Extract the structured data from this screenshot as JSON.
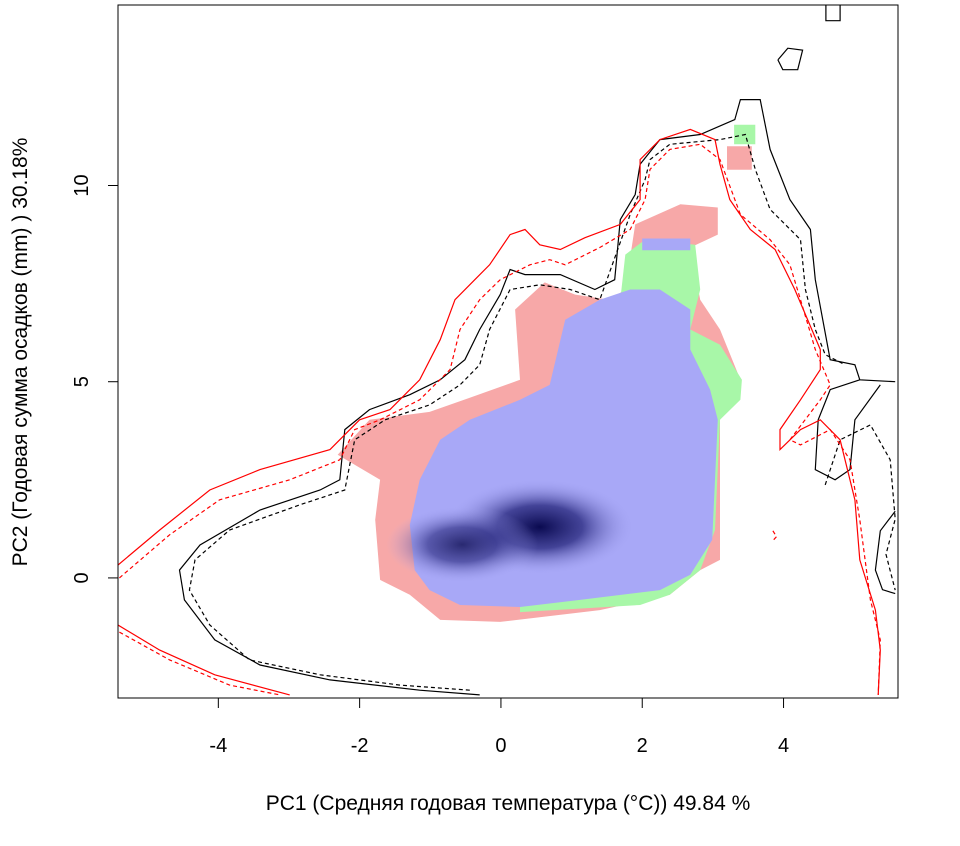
{
  "chart_data": {
    "type": "heatmap",
    "title": "",
    "xlabel": "PC1 (Средняя годовая температура (°C)) 49.84 %",
    "ylabel": "PC2 (Годовая сумма осадков  (mm) ) 30.18%",
    "xlim": [
      -5.42,
      5.62
    ],
    "ylim": [
      -3.06,
      14.6
    ],
    "xticks": [
      -4,
      -2,
      0,
      2,
      4
    ],
    "yticks": [
      0,
      5,
      10
    ],
    "xtick_labels": [
      "-4",
      "-2",
      "0",
      "2",
      "4"
    ],
    "ytick_labels": [
      "0",
      "5",
      "10"
    ],
    "grid": false,
    "colors": {
      "unfilling": "#f7a8a8",
      "expansion": "#a8f7a8",
      "stability": "#a8a8f7",
      "density_peak": "#0a0a50",
      "contour_native": "#000000",
      "contour_invaded": "#ff0000"
    },
    "regions": [
      {
        "name": "unfilling",
        "color": "#f7a8a8",
        "points": [
          [
            -2.31,
            3.14
          ],
          [
            -1.86,
            4.03
          ],
          [
            -1.01,
            4.23
          ],
          [
            -0.44,
            4.59
          ],
          [
            0.27,
            5.05
          ],
          [
            0.2,
            6.84
          ],
          [
            0.62,
            7.53
          ],
          [
            1.05,
            7.22
          ],
          [
            1.54,
            7.09
          ],
          [
            1.76,
            7.35
          ],
          [
            1.9,
            9.01
          ],
          [
            2.54,
            9.52
          ],
          [
            3.07,
            9.44
          ],
          [
            3.07,
            8.75
          ],
          [
            2.68,
            8.42
          ],
          [
            2.82,
            7.09
          ],
          [
            3.1,
            6.33
          ],
          [
            3.39,
            5.05
          ],
          [
            3.1,
            4.03
          ],
          [
            3.1,
            0.46
          ],
          [
            2.82,
            0.2
          ],
          [
            2.39,
            -0.43
          ],
          [
            1.4,
            -0.82
          ],
          [
            -0.01,
            -1.12
          ],
          [
            -0.86,
            -1.07
          ],
          [
            -1.29,
            -0.43
          ],
          [
            -1.71,
            -0.05
          ],
          [
            -1.78,
            1.48
          ],
          [
            -1.71,
            2.5
          ]
        ]
      },
      {
        "name": "unfilling-top",
        "color": "#f7a8a8",
        "points": [
          [
            3.2,
            10.4
          ],
          [
            3.55,
            10.4
          ],
          [
            3.55,
            11.0
          ],
          [
            3.2,
            11.0
          ]
        ]
      },
      {
        "name": "expansion",
        "color": "#a8f7a8",
        "points": [
          [
            1.69,
            7.09
          ],
          [
            1.76,
            8.24
          ],
          [
            2.04,
            8.62
          ],
          [
            2.75,
            8.49
          ],
          [
            2.82,
            7.35
          ],
          [
            2.68,
            6.33
          ],
          [
            3.1,
            5.94
          ],
          [
            3.41,
            5.05
          ],
          [
            3.39,
            4.54
          ],
          [
            3.1,
            4.03
          ],
          [
            3.03,
            1.22
          ],
          [
            2.82,
            0.2
          ],
          [
            2.39,
            -0.43
          ],
          [
            1.97,
            -0.69
          ],
          [
            0.27,
            -0.87
          ],
          [
            0.27,
            -0.56
          ]
        ]
      },
      {
        "name": "expansion-top",
        "color": "#a8f7a8",
        "points": [
          [
            3.3,
            11.05
          ],
          [
            3.6,
            11.05
          ],
          [
            3.6,
            11.55
          ],
          [
            3.3,
            11.55
          ]
        ]
      },
      {
        "name": "stability",
        "color": "#a8a8f7",
        "points": [
          [
            -1.29,
            1.35
          ],
          [
            -1.15,
            2.5
          ],
          [
            -0.86,
            3.52
          ],
          [
            -0.44,
            4.03
          ],
          [
            0.27,
            4.54
          ],
          [
            0.69,
            4.92
          ],
          [
            0.91,
            6.58
          ],
          [
            1.4,
            7.09
          ],
          [
            1.83,
            7.35
          ],
          [
            2.25,
            7.35
          ],
          [
            2.68,
            6.84
          ],
          [
            2.68,
            5.82
          ],
          [
            2.96,
            4.8
          ],
          [
            3.07,
            4.03
          ],
          [
            2.99,
            0.97
          ],
          [
            2.68,
            0.08
          ],
          [
            2.25,
            -0.31
          ],
          [
            1.12,
            -0.56
          ],
          [
            0.27,
            -0.74
          ],
          [
            -0.58,
            -0.69
          ],
          [
            -1.01,
            -0.31
          ],
          [
            -1.22,
            0.2
          ]
        ]
      },
      {
        "name": "stability-strip",
        "color": "#a8a8f7",
        "points": [
          [
            2.0,
            8.35
          ],
          [
            2.68,
            8.35
          ],
          [
            2.68,
            8.65
          ],
          [
            2.0,
            8.65
          ]
        ]
      }
    ],
    "density_peaks": [
      {
        "x": 0.55,
        "y": 1.3,
        "intensity": 1.0
      },
      {
        "x": -0.55,
        "y": 0.85,
        "intensity": 0.8
      }
    ],
    "contours": [
      {
        "name": "native-100",
        "color": "#000000",
        "dash": false,
        "points": [
          [
            -0.3,
            -2.98
          ],
          [
            -1.15,
            -2.86
          ],
          [
            -2.42,
            -2.6
          ],
          [
            -3.41,
            -2.22
          ],
          [
            -4.05,
            -1.58
          ],
          [
            -4.48,
            -0.56
          ],
          [
            -4.55,
            0.2
          ],
          [
            -4.26,
            0.84
          ],
          [
            -3.41,
            1.73
          ],
          [
            -2.56,
            2.24
          ],
          [
            -2.28,
            2.5
          ],
          [
            -2.21,
            3.78
          ],
          [
            -1.86,
            4.29
          ],
          [
            -1.29,
            4.67
          ],
          [
            -0.86,
            5.05
          ],
          [
            -0.51,
            5.56
          ],
          [
            -0.3,
            6.33
          ],
          [
            -0.01,
            7.22
          ],
          [
            0.13,
            7.86
          ],
          [
            0.34,
            7.73
          ],
          [
            0.84,
            7.73
          ],
          [
            1.33,
            7.35
          ],
          [
            1.61,
            7.6
          ],
          [
            1.69,
            9.13
          ],
          [
            1.9,
            9.77
          ],
          [
            1.97,
            10.54
          ],
          [
            2.25,
            11.17
          ],
          [
            2.82,
            11.3
          ],
          [
            3.31,
            11.68
          ],
          [
            3.39,
            12.19
          ],
          [
            3.67,
            12.19
          ],
          [
            3.81,
            10.92
          ],
          [
            4.09,
            9.64
          ],
          [
            4.38,
            8.88
          ],
          [
            4.45,
            7.6
          ],
          [
            4.66,
            5.56
          ],
          [
            5.01,
            5.43
          ],
          [
            5.08,
            5.05
          ],
          [
            5.58,
            5.0
          ]
        ]
      },
      {
        "name": "native-100-loop",
        "color": "#000000",
        "dash": false,
        "points": [
          [
            5.08,
            5.05
          ],
          [
            4.66,
            4.8
          ],
          [
            4.49,
            4.03
          ],
          [
            4.45,
            2.76
          ],
          [
            4.73,
            2.5
          ],
          [
            4.94,
            2.76
          ],
          [
            5.01,
            4.03
          ],
          [
            5.37,
            4.92
          ]
        ]
      },
      {
        "name": "native-100-island",
        "color": "#000000",
        "dash": false,
        "points": [
          [
            3.92,
            13.2
          ],
          [
            4.06,
            13.5
          ],
          [
            4.27,
            13.45
          ],
          [
            4.2,
            12.95
          ],
          [
            3.99,
            12.95
          ],
          [
            3.92,
            13.2
          ]
        ]
      },
      {
        "name": "native-100-top",
        "color": "#000000",
        "dash": false,
        "points": [
          [
            4.6,
            14.6
          ],
          [
            4.6,
            14.2
          ],
          [
            4.8,
            14.2
          ],
          [
            4.8,
            14.6
          ]
        ]
      },
      {
        "name": "native-100-right",
        "color": "#000000",
        "dash": false,
        "points": [
          [
            5.58,
            1.7
          ],
          [
            5.37,
            1.2
          ],
          [
            5.3,
            0.2
          ],
          [
            5.4,
            -0.3
          ],
          [
            5.58,
            -0.4
          ]
        ]
      },
      {
        "name": "native-envelope",
        "color": "#000000",
        "dash": true,
        "points": [
          [
            -0.44,
            -2.86
          ],
          [
            -1.43,
            -2.73
          ],
          [
            -2.56,
            -2.47
          ],
          [
            -3.56,
            -2.09
          ],
          [
            -4.12,
            -1.2
          ],
          [
            -4.41,
            -0.31
          ],
          [
            -4.33,
            0.46
          ],
          [
            -3.84,
            1.22
          ],
          [
            -2.85,
            1.86
          ],
          [
            -2.21,
            2.24
          ],
          [
            -2.07,
            3.52
          ],
          [
            -1.64,
            4.03
          ],
          [
            -1.01,
            4.41
          ],
          [
            -0.58,
            4.92
          ],
          [
            -0.3,
            5.43
          ],
          [
            -0.16,
            6.33
          ],
          [
            0.13,
            7.35
          ],
          [
            0.55,
            7.47
          ],
          [
            0.98,
            7.35
          ],
          [
            1.4,
            7.09
          ],
          [
            1.83,
            9.26
          ],
          [
            2.04,
            10.15
          ],
          [
            2.11,
            10.66
          ],
          [
            2.39,
            11.05
          ],
          [
            3.1,
            11.17
          ],
          [
            3.46,
            11.3
          ],
          [
            3.6,
            10.41
          ],
          [
            3.81,
            9.39
          ],
          [
            4.24,
            8.62
          ],
          [
            4.31,
            7.35
          ],
          [
            4.45,
            6.33
          ],
          [
            4.59,
            5.69
          ],
          [
            4.87,
            5.43
          ]
        ]
      },
      {
        "name": "native-envelope-right",
        "color": "#000000",
        "dash": true,
        "points": [
          [
            4.59,
            2.37
          ],
          [
            4.8,
            3.52
          ],
          [
            5.23,
            3.9
          ],
          [
            5.51,
            3.01
          ],
          [
            5.58,
            1.5
          ],
          [
            5.45,
            0.6
          ],
          [
            5.58,
            -0.31
          ]
        ]
      },
      {
        "name": "invaded-100",
        "color": "#ff0000",
        "dash": false,
        "points": [
          [
            -5.42,
            0.33
          ],
          [
            -4.83,
            1.22
          ],
          [
            -4.12,
            2.24
          ],
          [
            -3.41,
            2.76
          ],
          [
            -2.42,
            3.27
          ],
          [
            -2.0,
            4.03
          ],
          [
            -1.57,
            4.29
          ],
          [
            -1.15,
            5.05
          ],
          [
            -0.86,
            6.07
          ],
          [
            -0.65,
            7.09
          ],
          [
            -0.37,
            7.6
          ],
          [
            -0.16,
            7.98
          ],
          [
            0.13,
            8.75
          ],
          [
            0.34,
            8.88
          ],
          [
            0.55,
            8.49
          ],
          [
            0.84,
            8.37
          ],
          [
            1.19,
            8.67
          ],
          [
            1.69,
            9.01
          ],
          [
            1.97,
            9.64
          ],
          [
            1.97,
            10.66
          ],
          [
            2.25,
            11.17
          ],
          [
            2.68,
            11.43
          ],
          [
            3.03,
            11.17
          ],
          [
            3.1,
            10.54
          ],
          [
            3.24,
            9.64
          ],
          [
            3.53,
            8.88
          ],
          [
            3.88,
            8.37
          ],
          [
            4.16,
            7.35
          ],
          [
            4.52,
            5.82
          ],
          [
            4.52,
            5.31
          ],
          [
            4.24,
            4.54
          ],
          [
            3.95,
            3.78
          ],
          [
            3.95,
            3.27
          ],
          [
            4.24,
            3.78
          ],
          [
            4.52,
            4.03
          ],
          [
            4.8,
            3.52
          ],
          [
            5.01,
            1.99
          ],
          [
            5.08,
            0.46
          ],
          [
            5.3,
            -0.82
          ],
          [
            5.37,
            -1.84
          ],
          [
            5.34,
            -2.98
          ]
        ]
      },
      {
        "name": "invaded-100-lower",
        "color": "#ff0000",
        "dash": false,
        "points": [
          [
            -5.42,
            -1.2
          ],
          [
            -4.83,
            -1.84
          ],
          [
            -4.05,
            -2.47
          ],
          [
            -2.99,
            -2.98
          ]
        ]
      },
      {
        "name": "invaded-envelope",
        "color": "#ff0000",
        "dash": true,
        "points": [
          [
            -5.4,
            0.0
          ],
          [
            -4.69,
            1.1
          ],
          [
            -3.98,
            1.99
          ],
          [
            -2.99,
            2.5
          ],
          [
            -2.28,
            3.01
          ],
          [
            -2.07,
            3.78
          ],
          [
            -1.71,
            4.03
          ],
          [
            -1.15,
            4.54
          ],
          [
            -0.72,
            5.31
          ],
          [
            -0.58,
            6.33
          ],
          [
            -0.3,
            7.09
          ],
          [
            -0.01,
            7.6
          ],
          [
            0.41,
            7.98
          ],
          [
            0.69,
            8.11
          ],
          [
            0.91,
            7.98
          ],
          [
            1.4,
            8.42
          ],
          [
            1.83,
            8.88
          ],
          [
            2.04,
            9.64
          ],
          [
            2.11,
            10.41
          ],
          [
            2.39,
            10.92
          ],
          [
            2.82,
            11.05
          ],
          [
            3.1,
            10.66
          ],
          [
            3.39,
            9.26
          ],
          [
            3.81,
            8.62
          ],
          [
            4.09,
            7.98
          ],
          [
            4.24,
            7.09
          ],
          [
            4.45,
            5.82
          ],
          [
            4.66,
            4.92
          ],
          [
            4.52,
            4.54
          ],
          [
            4.09,
            3.52
          ],
          [
            4.24,
            3.39
          ],
          [
            4.66,
            3.78
          ],
          [
            4.94,
            3.01
          ],
          [
            5.08,
            1.48
          ],
          [
            5.23,
            -0.56
          ],
          [
            5.37,
            -1.58
          ],
          [
            5.34,
            -2.98
          ]
        ]
      },
      {
        "name": "invaded-envelope-lower",
        "color": "#ff0000",
        "dash": true,
        "points": [
          [
            -5.4,
            -1.38
          ],
          [
            -4.69,
            -2.09
          ],
          [
            -3.84,
            -2.73
          ],
          [
            -3.13,
            -2.98
          ]
        ]
      },
      {
        "name": "invaded-speck",
        "color": "#ff0000",
        "dash": true,
        "points": [
          [
            3.85,
            1.2
          ],
          [
            3.9,
            1.05
          ],
          [
            3.85,
            0.95
          ]
        ]
      }
    ]
  }
}
